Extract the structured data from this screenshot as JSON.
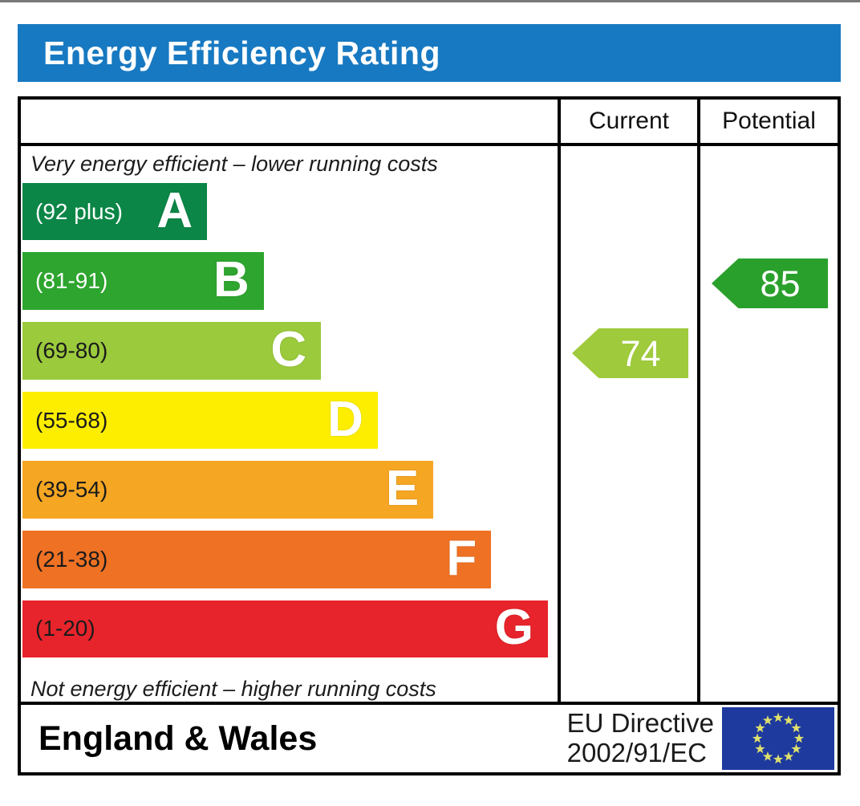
{
  "page": {
    "title": "Energy Efficiency Rating"
  },
  "colors": {
    "header_bg": "#1779c1",
    "table_border": "#000000"
  },
  "table": {
    "columns": {
      "current": "Current",
      "potential": "Potential"
    },
    "caption_top": "Very energy efficient – lower running costs",
    "caption_bottom": "Not energy efficient – higher running costs"
  },
  "chart_data": {
    "type": "bar",
    "title": "Energy Efficiency Rating",
    "bands": [
      {
        "letter": "A",
        "range": "(92 plus)",
        "min": 92,
        "max": 100,
        "color": "#0b8647",
        "label_color": "#ffffff",
        "width_pct": 34.5
      },
      {
        "letter": "B",
        "range": "(81-91)",
        "min": 81,
        "max": 91,
        "color": "#2ea52e",
        "label_color": "#ffffff",
        "width_pct": 45.1
      },
      {
        "letter": "C",
        "range": "(69-80)",
        "min": 69,
        "max": 80,
        "color": "#9bca3c",
        "label_color": "#1b1b1b",
        "width_pct": 55.8
      },
      {
        "letter": "D",
        "range": "(55-68)",
        "min": 55,
        "max": 68,
        "color": "#fdee00",
        "label_color": "#1b1b1b",
        "width_pct": 66.4
      },
      {
        "letter": "E",
        "range": "(39-54)",
        "min": 39,
        "max": 54,
        "color": "#f5a623",
        "label_color": "#1b1b1b",
        "width_pct": 76.8
      },
      {
        "letter": "F",
        "range": "(21-38)",
        "min": 21,
        "max": 38,
        "color": "#ee7124",
        "label_color": "#1b1b1b",
        "width_pct": 87.6
      },
      {
        "letter": "G",
        "range": "(1-20)",
        "min": 1,
        "max": 20,
        "color": "#e7242b",
        "label_color": "#1b1b1b",
        "width_pct": 98.2
      }
    ],
    "current": {
      "value": 74,
      "band": "C",
      "color": "#9fca3c"
    },
    "potential": {
      "value": 85,
      "band": "B",
      "color": "#2aa02c"
    }
  },
  "footer": {
    "region": "England & Wales",
    "directive_line1": "EU Directive",
    "directive_line2": "2002/91/EC",
    "eu_flag": {
      "background": "#1e3a9f",
      "star_color": "#dfe06c"
    }
  }
}
